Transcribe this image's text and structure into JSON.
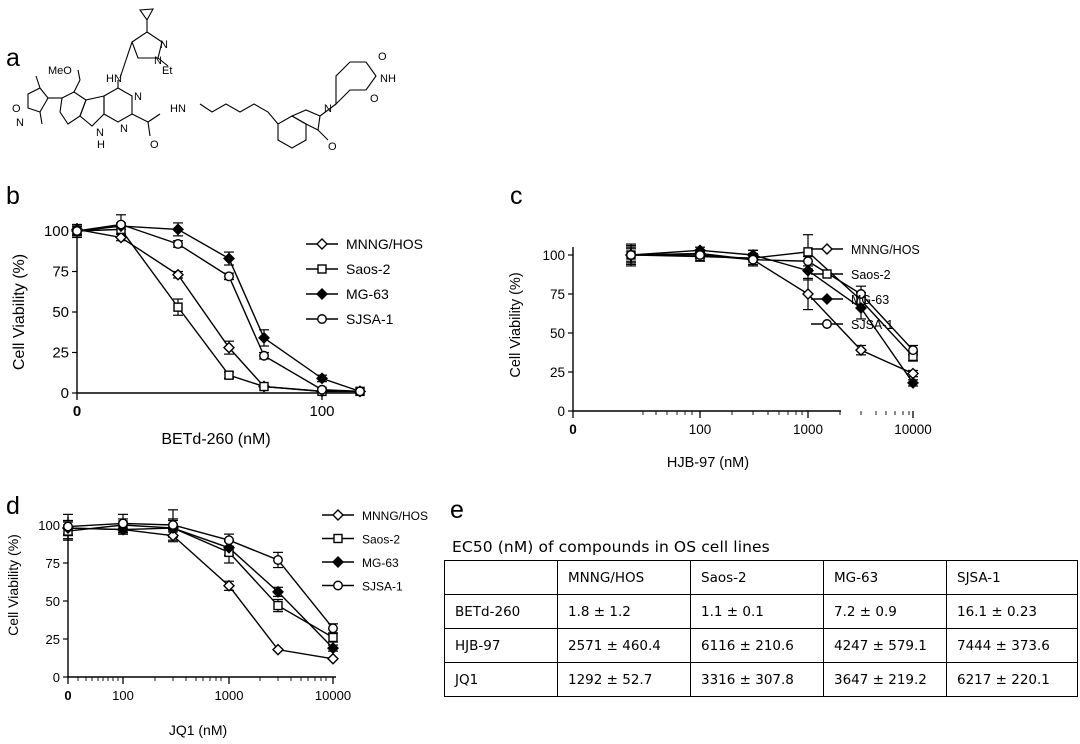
{
  "panels": {
    "a": "a",
    "b": "b",
    "c": "c",
    "d": "d",
    "e": "e"
  },
  "structure": {
    "atoms": {
      "meo": "MeO",
      "hn": "HN",
      "n_pyr1": "N",
      "n_pyr2": "N",
      "et": "Et",
      "o_isox": "O",
      "n_isox": "N",
      "n_ring1": "N",
      "n_ring2": "N",
      "nh_core": "N",
      "h_core": "H",
      "hn_amide": "HN",
      "o_amide": "O",
      "n_lactam": "N",
      "o_lactam": "O",
      "o_glut1": "O",
      "nh_glut": "NH",
      "o_glut2": "O"
    }
  },
  "legend_markers": {
    "MNNG/HOS": "diamond-open",
    "Saos-2": "square-open",
    "MG-63": "diamond-filled",
    "SJSA-1": "circle-open"
  },
  "chart_data": [
    {
      "id": "b",
      "type": "line",
      "xlabel": "BETd-260 (nM)",
      "ylabel": "Cell Viability (%)",
      "x_scale": "log",
      "xtick_labels": [
        "0",
        "100"
      ],
      "ytick_labels": [
        "0",
        "25",
        "50",
        "75",
        "100"
      ],
      "ylim": [
        0,
        100
      ],
      "x": [
        0.3,
        1,
        3,
        10,
        30,
        100,
        300
      ],
      "series": [
        {
          "name": "MNNG/HOS",
          "values": [
            101,
            96,
            73,
            28,
            4,
            1,
            1
          ],
          "errors": [
            3,
            2,
            2,
            4,
            1,
            1,
            1
          ]
        },
        {
          "name": "Saos-2",
          "values": [
            100,
            101,
            53,
            11,
            4,
            1,
            1
          ],
          "errors": [
            3,
            3,
            5,
            2,
            1,
            1,
            1
          ]
        },
        {
          "name": "MG-63",
          "values": [
            100,
            103,
            101,
            83,
            34,
            9,
            1
          ],
          "errors": [
            3,
            2,
            4,
            4,
            5,
            2,
            1
          ]
        },
        {
          "name": "SJSA-1",
          "values": [
            100,
            104,
            92,
            72,
            23,
            2,
            1
          ],
          "errors": [
            4,
            6,
            2,
            2,
            2,
            1,
            1
          ]
        }
      ]
    },
    {
      "id": "c",
      "type": "line",
      "xlabel": "HJB-97 (nM)",
      "ylabel": "Cell Viability (%)",
      "x_scale": "log",
      "xtick_labels": [
        "0",
        "100",
        "1000",
        "10000"
      ],
      "ytick_labels": [
        "0",
        "25",
        "50",
        "75",
        "100"
      ],
      "ylim": [
        0,
        100
      ],
      "x": [
        30,
        100,
        300,
        1000,
        3000,
        10000
      ],
      "series": [
        {
          "name": "MNNG/HOS",
          "values": [
            100,
            101,
            97,
            75,
            39,
            24
          ],
          "errors": [
            6,
            2,
            3,
            10,
            3,
            2
          ]
        },
        {
          "name": "Saos-2",
          "values": [
            100,
            99,
            98,
            102,
            71,
            35
          ],
          "errors": [
            7,
            3,
            5,
            11,
            5,
            3
          ]
        },
        {
          "name": "MG-63",
          "values": [
            100,
            103,
            100,
            90,
            66,
            18
          ],
          "errors": [
            5,
            2,
            3,
            6,
            7,
            2
          ]
        },
        {
          "name": "SJSA-1",
          "values": [
            100,
            100,
            97,
            96,
            75,
            39
          ],
          "errors": [
            4,
            2,
            4,
            3,
            5,
            3
          ]
        }
      ]
    },
    {
      "id": "d",
      "type": "line",
      "xlabel": "JQ1 (nM)",
      "ylabel": "Cell Viability (%)",
      "x_scale": "log",
      "xtick_labels": [
        "0",
        "100",
        "1000",
        "10000"
      ],
      "ytick_labels": [
        "0",
        "25",
        "50",
        "75",
        "100"
      ],
      "ylim": [
        0,
        100
      ],
      "x": [
        30,
        100,
        300,
        1000,
        3000,
        10000
      ],
      "series": [
        {
          "name": "MNNG/HOS",
          "values": [
            98,
            97,
            93,
            60,
            18,
            12
          ],
          "errors": [
            5,
            3,
            4,
            3,
            1,
            1
          ]
        },
        {
          "name": "Saos-2",
          "values": [
            96,
            100,
            98,
            82,
            47,
            26
          ],
          "errors": [
            6,
            4,
            6,
            7,
            4,
            3
          ]
        },
        {
          "name": "MG-63",
          "values": [
            98,
            97,
            98,
            85,
            56,
            19
          ],
          "errors": [
            4,
            3,
            5,
            5,
            3,
            2
          ]
        },
        {
          "name": "SJSA-1",
          "values": [
            99,
            101,
            100,
            90,
            77,
            32
          ],
          "errors": [
            8,
            6,
            10,
            4,
            5,
            3
          ]
        }
      ]
    }
  ],
  "table": {
    "title": "EC50 (nM) of compounds in OS cell lines",
    "header": [
      "",
      "MNNG/HOS",
      "Saos-2",
      "MG-63",
      "SJSA-1"
    ],
    "rows": [
      [
        "BETd-260",
        "1.8 ± 1.2",
        "1.1 ± 0.1",
        "7.2 ±  0.9",
        "16.1 ± 0.23"
      ],
      [
        "HJB-97",
        "2571 ± 460.4",
        "6116 ± 210.6",
        "4247 ± 579.1",
        "7444 ± 373.6"
      ],
      [
        "JQ1",
        "1292 ± 52.7",
        "3316 ± 307.8",
        "3647 ±  219.2",
        "6217 ± 220.1"
      ]
    ]
  }
}
